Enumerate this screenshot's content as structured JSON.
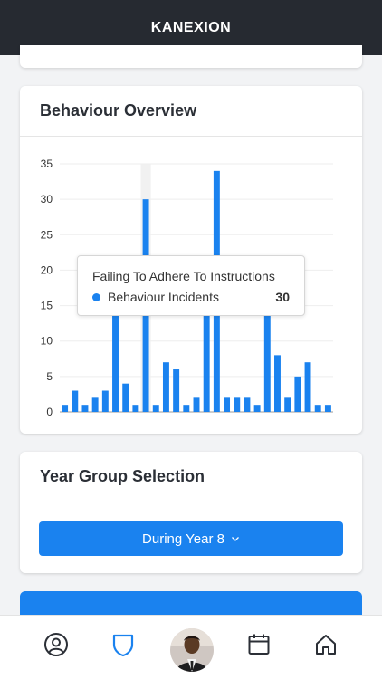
{
  "header": {
    "title": "KANEXION"
  },
  "behaviour": {
    "title": "Behaviour Overview",
    "tooltip": {
      "title": "Failing To Adhere To Instructions",
      "series": "Behaviour Incidents",
      "value": "30"
    }
  },
  "year_group": {
    "title": "Year Group Selection",
    "selected": "During Year 8"
  },
  "tabbar": {
    "items": [
      "profile-icon",
      "shield-icon",
      "avatar",
      "calendar-icon",
      "home-icon"
    ]
  },
  "colors": {
    "accent": "#1a82ef",
    "header": "#262a31"
  },
  "chart_data": {
    "type": "bar",
    "ylim": [
      0,
      35
    ],
    "yticks": [
      "0",
      "5",
      "10",
      "15",
      "20",
      "25",
      "30",
      "35"
    ],
    "series": [
      {
        "name": "Behaviour Incidents",
        "values": [
          1,
          3,
          1,
          2,
          3,
          15,
          4,
          1,
          30,
          1,
          7,
          6,
          1,
          2,
          15,
          34,
          2,
          2,
          2,
          1,
          15,
          8,
          2,
          5,
          7,
          1,
          1
        ]
      }
    ],
    "highlighted_index": 8,
    "grid": true
  }
}
